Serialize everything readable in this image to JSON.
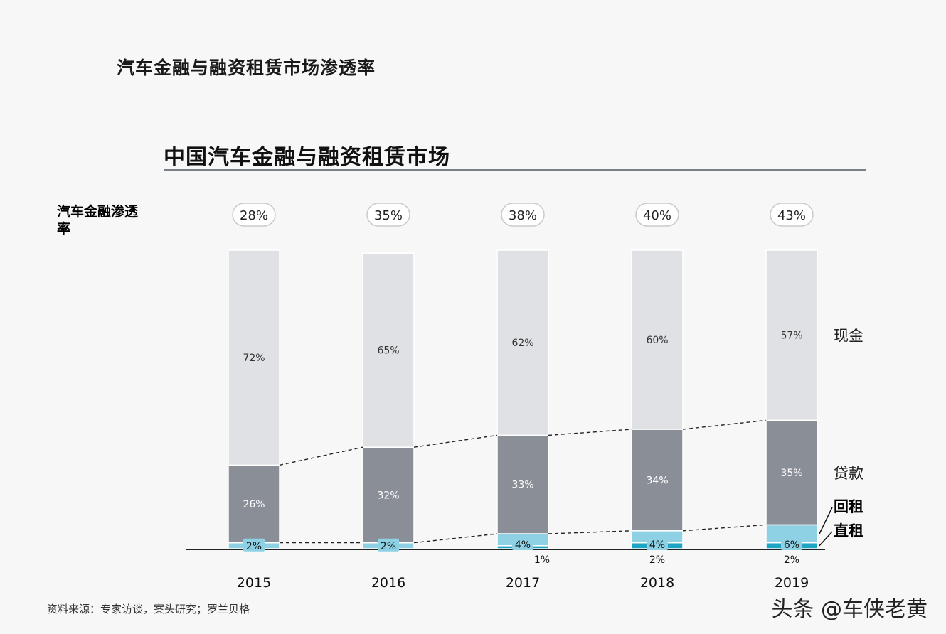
{
  "page_title": "汽车金融与融资租赁市场渗透率",
  "source": "资料来源：专家访谈，案头研究；罗兰贝格",
  "watermark": "头条 @车侠老黄",
  "chart_data": {
    "type": "bar",
    "title": "中国汽车金融与融资租赁市场",
    "penetration_label": "汽车金融渗透率",
    "categories": [
      "2015",
      "2016",
      "2017",
      "2018",
      "2019"
    ],
    "penetration": [
      "28%",
      "35%",
      "38%",
      "40%",
      "43%"
    ],
    "series": [
      {
        "name": "直租",
        "values": [
          0,
          0,
          1,
          2,
          2
        ],
        "labels": [
          "",
          "",
          "1%",
          "2%",
          "2%"
        ],
        "color": "#1fa5c4"
      },
      {
        "name": "回租",
        "values": [
          2,
          2,
          4,
          4,
          6
        ],
        "labels": [
          "2%",
          "2%",
          "4%",
          "4%",
          "6%"
        ],
        "color": "#8fd1e4"
      },
      {
        "name": "贷款",
        "values": [
          26,
          32,
          33,
          34,
          35
        ],
        "labels": [
          "26%",
          "32%",
          "33%",
          "34%",
          "35%"
        ],
        "color": "#8a8f97"
      },
      {
        "name": "现金",
        "values": [
          72,
          65,
          62,
          60,
          57
        ],
        "labels": [
          "72%",
          "65%",
          "62%",
          "60%",
          "57%"
        ],
        "color": "#dfe1e5"
      }
    ],
    "ylim": [
      0,
      100
    ],
    "legend_placement": "right"
  }
}
